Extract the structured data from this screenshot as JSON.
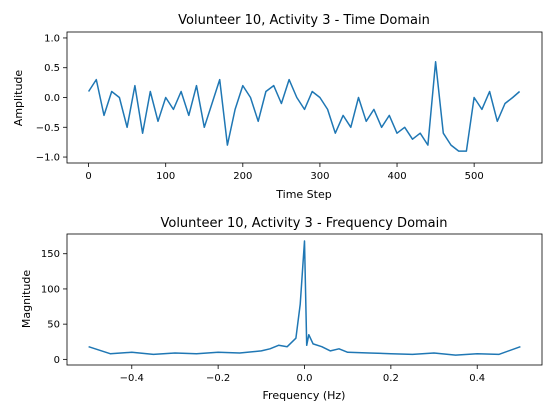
{
  "chart_data": [
    {
      "type": "line",
      "title": "Volunteer 10, Activity 3 - Time Domain",
      "xlabel": "Time Step",
      "ylabel": "Amplitude",
      "xlim": [
        -28,
        588
      ],
      "ylim": [
        -1.1,
        1.1
      ],
      "xticks": [
        0,
        100,
        200,
        300,
        400,
        500
      ],
      "yticks": [
        -1.0,
        -0.5,
        0.0,
        0.5,
        1.0
      ],
      "ytick_labels": [
        "−1.0",
        "−0.5",
        "0.0",
        "0.5",
        "1.0"
      ],
      "grid": false,
      "color": "#1f77b4",
      "series": [
        {
          "x": [
            0,
            10,
            20,
            30,
            40,
            50,
            60,
            70,
            80,
            90,
            100,
            110,
            120,
            130,
            140,
            150,
            160,
            170,
            180,
            190,
            200,
            210,
            220,
            230,
            240,
            250,
            260,
            270,
            280,
            290,
            300,
            310,
            320,
            330,
            340,
            350,
            360,
            370,
            380,
            390,
            400,
            410,
            420,
            430,
            440,
            450,
            460,
            470,
            480,
            490,
            500,
            510,
            520,
            530,
            540,
            550,
            559
          ],
          "values": [
            0.1,
            0.3,
            -0.3,
            0.1,
            0.0,
            -0.5,
            0.2,
            -0.6,
            0.1,
            -0.4,
            0.0,
            -0.2,
            0.1,
            -0.3,
            0.2,
            -0.5,
            -0.1,
            0.3,
            -0.8,
            -0.2,
            0.2,
            0.0,
            -0.4,
            0.1,
            0.2,
            -0.1,
            0.3,
            0.0,
            -0.2,
            0.1,
            0.0,
            -0.2,
            -0.6,
            -0.3,
            -0.5,
            0.0,
            -0.4,
            -0.2,
            -0.5,
            -0.3,
            -0.6,
            -0.5,
            -0.7,
            -0.6,
            -0.8,
            0.6,
            -0.6,
            -0.8,
            -0.9,
            -0.9,
            0.0,
            -0.2,
            0.1,
            -0.4,
            -0.1,
            0.0,
            0.1
          ]
        }
      ]
    },
    {
      "type": "line",
      "title": "Volunteer 10, Activity 3 - Frequency Domain",
      "xlabel": "Frequency (Hz)",
      "ylabel": "Magnitude",
      "xlim": [
        -0.55,
        0.55
      ],
      "ylim": [
        -8,
        178
      ],
      "xticks": [
        -0.4,
        -0.2,
        0.0,
        0.2,
        0.4
      ],
      "xtick_labels": [
        "−0.4",
        "−0.2",
        "0.0",
        "0.2",
        "0.4"
      ],
      "yticks": [
        0,
        50,
        100,
        150
      ],
      "grid": false,
      "color": "#1f77b4",
      "series": [
        {
          "x": [
            -0.5,
            -0.45,
            -0.4,
            -0.35,
            -0.3,
            -0.25,
            -0.2,
            -0.15,
            -0.1,
            -0.08,
            -0.06,
            -0.04,
            -0.02,
            -0.01,
            0.0,
            0.005,
            0.01,
            0.02,
            0.04,
            0.06,
            0.08,
            0.1,
            0.15,
            0.2,
            0.25,
            0.3,
            0.35,
            0.4,
            0.45,
            0.5
          ],
          "values": [
            18,
            8,
            10,
            7,
            9,
            8,
            10,
            9,
            12,
            15,
            20,
            18,
            30,
            78,
            168,
            20,
            35,
            22,
            18,
            12,
            15,
            10,
            9,
            8,
            7,
            9,
            6,
            8,
            7,
            18
          ]
        }
      ]
    }
  ]
}
